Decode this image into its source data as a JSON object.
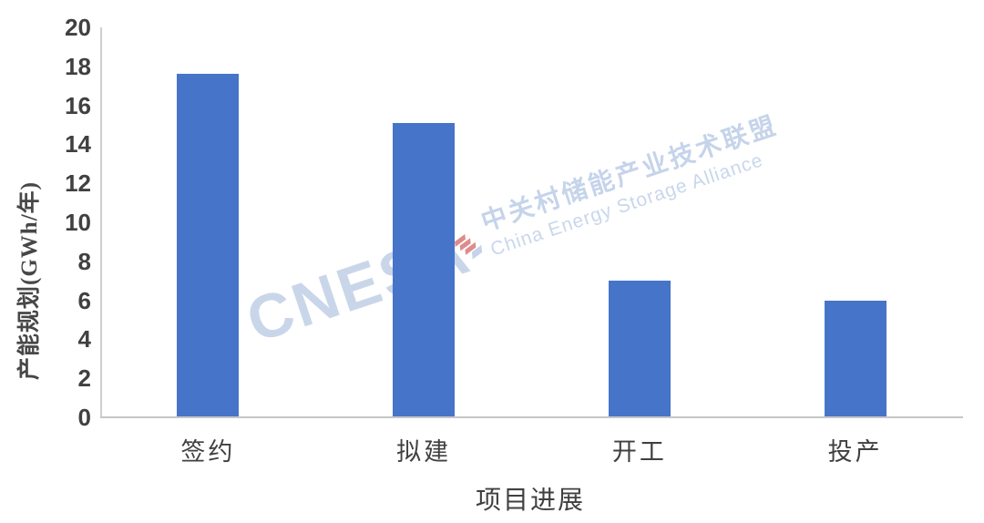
{
  "chart_data": {
    "type": "bar",
    "categories": [
      "签约",
      "拟建",
      "开工",
      "投产"
    ],
    "values": [
      17.6,
      15.1,
      7,
      6
    ],
    "title": "",
    "xlabel": "项目进展",
    "ylabel": "产能规划(GWh/年)",
    "ylim": [
      0,
      20
    ],
    "yticks": [
      0,
      2,
      4,
      6,
      8,
      10,
      12,
      14,
      16,
      18,
      20
    ],
    "grid": false,
    "legend": "none",
    "bar_color": "#4674c9",
    "axis_line_color": "#c6c6c6",
    "tick_label_color": "#404040"
  },
  "watermark": {
    "logo_text": "CNESA",
    "cn_text": "中关村储能产业技术联盟",
    "en_text": "China Energy Storage Alliance",
    "text_color": "#c9d6ea",
    "accent_color": "#e08a8a"
  }
}
